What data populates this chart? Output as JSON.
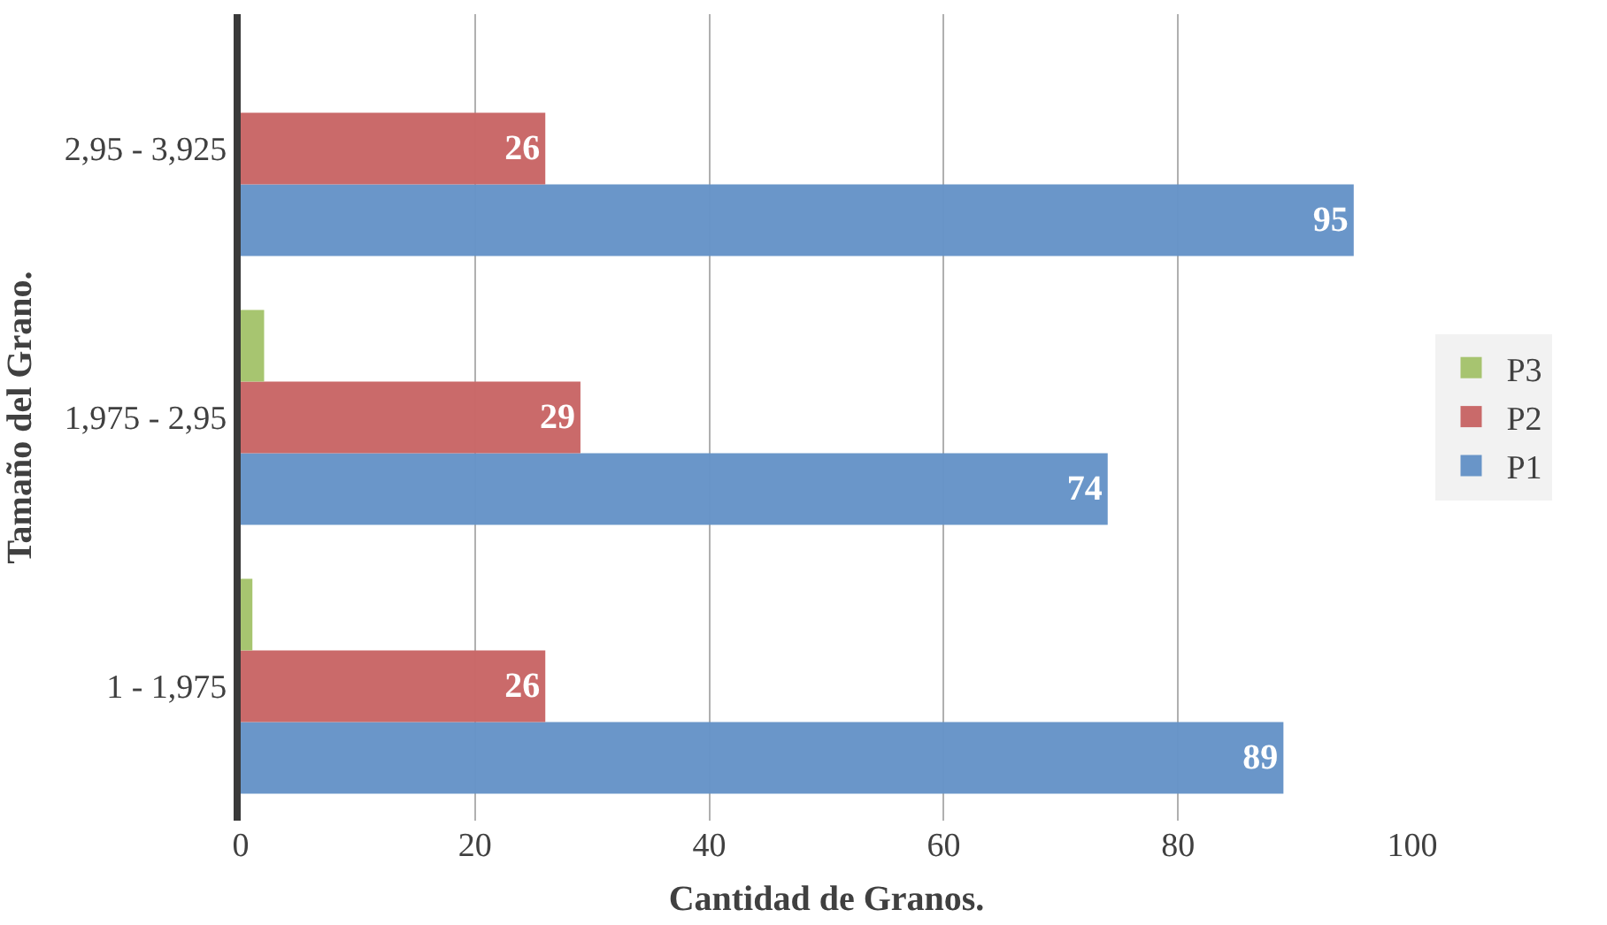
{
  "chart_data": {
    "type": "bar",
    "orientation": "horizontal",
    "xlabel": "Cantidad de Granos.",
    "ylabel": "Tamaño del Grano.",
    "categories": [
      "2,95 - 3,925",
      "1,975 - 2,95",
      "1 - 1,975"
    ],
    "series": [
      {
        "name": "P1",
        "color": "#6794c8",
        "values": [
          95,
          74,
          89
        ],
        "value_labels": [
          "95",
          "74",
          "89"
        ]
      },
      {
        "name": "P2",
        "color": "#c96868",
        "values": [
          26,
          29,
          26
        ],
        "value_labels": [
          "26",
          "29",
          "26"
        ]
      },
      {
        "name": "P3",
        "color": "#a6c46e",
        "values": [
          null,
          2,
          1
        ]
      }
    ],
    "xlim": [
      0,
      100
    ],
    "xticks": [
      0,
      20,
      40,
      60,
      80,
      100
    ],
    "grid": "x",
    "legend": "right"
  }
}
